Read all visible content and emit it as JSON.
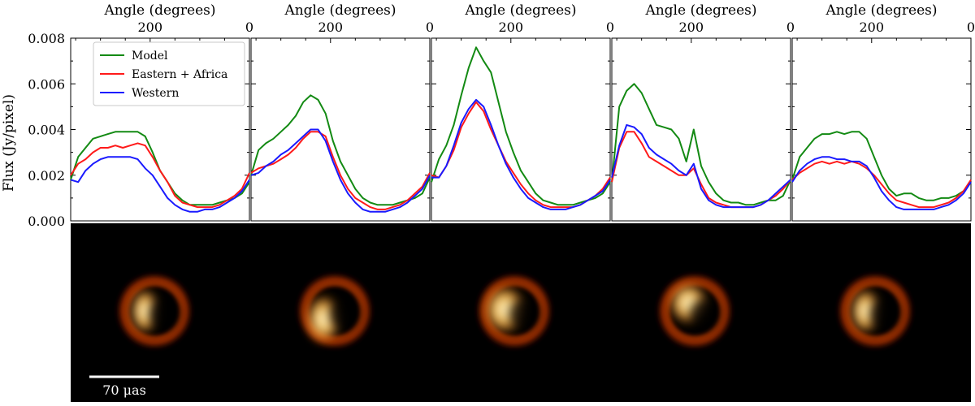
{
  "figure": {
    "ylabel": "Flux (Jy/pixel)",
    "top_xlabel": "Angle (degrees)",
    "scalebar_label": "70 μas"
  },
  "legend": {
    "entries": [
      {
        "label": "Model",
        "color": "#138a13"
      },
      {
        "label": "Eastern + Africa",
        "color": "#ff1a1a"
      },
      {
        "label": "Western",
        "color": "#1a1aff"
      }
    ]
  },
  "colors": {
    "model": "#138a13",
    "eastern_africa": "#ff1a1a",
    "western": "#1a1aff",
    "image_background": "#000000"
  },
  "chart_data": [
    {
      "type": "line",
      "xlabel": "Angle (degrees)",
      "ylabel": "Flux (Jy/pixel)",
      "xlim": [
        360,
        0
      ],
      "ylim": [
        0,
        0.008
      ],
      "x_ticks": [
        "200",
        "0"
      ],
      "y_ticks": [
        "0.000",
        "0.002",
        "0.004",
        "0.006",
        "0.008"
      ],
      "series": [
        {
          "name": "Model",
          "x": [
            360,
            345,
            330,
            315,
            300,
            285,
            270,
            255,
            240,
            225,
            210,
            195,
            180,
            165,
            150,
            135,
            120,
            105,
            90,
            75,
            60,
            45,
            30,
            15,
            0
          ],
          "y": [
            0.0018,
            0.0028,
            0.0032,
            0.0036,
            0.0037,
            0.0038,
            0.0039,
            0.0039,
            0.0039,
            0.0039,
            0.0037,
            0.003,
            0.0022,
            0.0017,
            0.0012,
            0.0009,
            0.0007,
            0.0007,
            0.0007,
            0.0007,
            0.0008,
            0.0009,
            0.001,
            0.0012,
            0.0017
          ]
        },
        {
          "name": "Eastern + Africa",
          "x": [
            360,
            345,
            330,
            315,
            300,
            285,
            270,
            255,
            240,
            225,
            210,
            195,
            180,
            165,
            150,
            135,
            120,
            105,
            90,
            75,
            60,
            45,
            30,
            15,
            0
          ],
          "y": [
            0.002,
            0.0025,
            0.0027,
            0.003,
            0.0032,
            0.0032,
            0.0033,
            0.0032,
            0.0033,
            0.0034,
            0.0033,
            0.0028,
            0.0022,
            0.0017,
            0.0011,
            0.0008,
            0.0007,
            0.0006,
            0.0006,
            0.0006,
            0.0007,
            0.0009,
            0.0011,
            0.0014,
            0.0021
          ]
        },
        {
          "name": "Western",
          "x": [
            360,
            345,
            330,
            315,
            300,
            285,
            270,
            255,
            240,
            225,
            210,
            195,
            180,
            165,
            150,
            135,
            120,
            105,
            90,
            75,
            60,
            45,
            30,
            15,
            0
          ],
          "y": [
            0.0018,
            0.0017,
            0.0022,
            0.0025,
            0.0027,
            0.0028,
            0.0028,
            0.0028,
            0.0028,
            0.0027,
            0.0023,
            0.002,
            0.0015,
            0.001,
            0.0007,
            0.0005,
            0.0004,
            0.0004,
            0.0005,
            0.0005,
            0.0006,
            0.0008,
            0.001,
            0.0013,
            0.0018
          ]
        }
      ]
    },
    {
      "type": "line",
      "xlabel": "Angle (degrees)",
      "xlim": [
        360,
        0
      ],
      "ylim": [
        0,
        0.008
      ],
      "x_ticks": [
        "200",
        "0"
      ],
      "series": [
        {
          "name": "Model",
          "x": [
            360,
            345,
            330,
            315,
            300,
            285,
            270,
            255,
            240,
            225,
            210,
            195,
            180,
            165,
            150,
            135,
            120,
            105,
            90,
            75,
            60,
            45,
            30,
            15,
            0
          ],
          "y": [
            0.002,
            0.0031,
            0.0034,
            0.0036,
            0.0039,
            0.0042,
            0.0046,
            0.0052,
            0.0055,
            0.0053,
            0.0047,
            0.0035,
            0.0026,
            0.002,
            0.0014,
            0.001,
            0.0008,
            0.0007,
            0.0007,
            0.0007,
            0.0008,
            0.0009,
            0.001,
            0.0012,
            0.0019
          ]
        },
        {
          "name": "Eastern + Africa",
          "x": [
            360,
            345,
            330,
            315,
            300,
            285,
            270,
            255,
            240,
            225,
            210,
            195,
            180,
            165,
            150,
            135,
            120,
            105,
            90,
            75,
            60,
            45,
            30,
            15,
            0
          ],
          "y": [
            0.0021,
            0.0023,
            0.0024,
            0.0025,
            0.0027,
            0.0029,
            0.0032,
            0.0036,
            0.0039,
            0.0039,
            0.0037,
            0.0028,
            0.002,
            0.0014,
            0.001,
            0.0008,
            0.0006,
            0.0005,
            0.0005,
            0.0006,
            0.0007,
            0.0009,
            0.0012,
            0.0015,
            0.0021
          ]
        },
        {
          "name": "Western",
          "x": [
            360,
            345,
            330,
            315,
            300,
            285,
            270,
            255,
            240,
            225,
            210,
            195,
            180,
            165,
            150,
            135,
            120,
            105,
            90,
            75,
            60,
            45,
            30,
            15,
            0
          ],
          "y": [
            0.002,
            0.0021,
            0.0024,
            0.0026,
            0.0029,
            0.0031,
            0.0034,
            0.0037,
            0.004,
            0.004,
            0.0035,
            0.0026,
            0.0018,
            0.0012,
            0.0008,
            0.0005,
            0.0004,
            0.0004,
            0.0004,
            0.0005,
            0.0006,
            0.0008,
            0.0011,
            0.0014,
            0.002
          ]
        }
      ]
    },
    {
      "type": "line",
      "xlabel": "Angle (degrees)",
      "xlim": [
        360,
        0
      ],
      "ylim": [
        0,
        0.008
      ],
      "x_ticks": [
        "200",
        "0"
      ],
      "series": [
        {
          "name": "Model",
          "x": [
            360,
            345,
            330,
            315,
            300,
            285,
            270,
            255,
            240,
            225,
            210,
            195,
            180,
            165,
            150,
            135,
            120,
            105,
            90,
            75,
            60,
            45,
            30,
            15,
            0
          ],
          "y": [
            0.0017,
            0.0027,
            0.0033,
            0.0042,
            0.0055,
            0.0067,
            0.0076,
            0.007,
            0.0065,
            0.0052,
            0.0039,
            0.003,
            0.0022,
            0.0017,
            0.0012,
            0.0009,
            0.0008,
            0.0007,
            0.0007,
            0.0007,
            0.0008,
            0.0009,
            0.001,
            0.0012,
            0.0017
          ]
        },
        {
          "name": "Eastern + Africa",
          "x": [
            360,
            345,
            330,
            315,
            300,
            285,
            270,
            255,
            240,
            225,
            210,
            195,
            180,
            165,
            150,
            135,
            120,
            105,
            90,
            75,
            60,
            45,
            30,
            15,
            0
          ],
          "y": [
            0.002,
            0.0019,
            0.0024,
            0.0031,
            0.0041,
            0.0047,
            0.0052,
            0.0048,
            0.004,
            0.0033,
            0.0026,
            0.0021,
            0.0016,
            0.0012,
            0.0009,
            0.0007,
            0.0006,
            0.0006,
            0.0006,
            0.0006,
            0.0007,
            0.0009,
            0.0011,
            0.0014,
            0.0019
          ]
        },
        {
          "name": "Western",
          "x": [
            360,
            345,
            330,
            315,
            300,
            285,
            270,
            255,
            240,
            225,
            210,
            195,
            180,
            165,
            150,
            135,
            120,
            105,
            90,
            75,
            60,
            45,
            30,
            15,
            0
          ],
          "y": [
            0.0019,
            0.0019,
            0.0024,
            0.0033,
            0.0043,
            0.0049,
            0.0053,
            0.005,
            0.0042,
            0.0033,
            0.0025,
            0.0019,
            0.0014,
            0.001,
            0.0008,
            0.0006,
            0.0005,
            0.0005,
            0.0005,
            0.0006,
            0.0007,
            0.0009,
            0.0011,
            0.0013,
            0.0018
          ]
        }
      ]
    },
    {
      "type": "line",
      "xlabel": "Angle (degrees)",
      "xlim": [
        360,
        0
      ],
      "ylim": [
        0,
        0.008
      ],
      "x_ticks": [
        "200",
        "0"
      ],
      "series": [
        {
          "name": "Model",
          "x": [
            360,
            345,
            330,
            315,
            300,
            285,
            270,
            255,
            240,
            225,
            210,
            195,
            180,
            165,
            150,
            135,
            120,
            105,
            90,
            75,
            60,
            45,
            30,
            15,
            0
          ],
          "y": [
            0.0017,
            0.005,
            0.0057,
            0.006,
            0.0056,
            0.0049,
            0.0042,
            0.0041,
            0.004,
            0.0036,
            0.0026,
            0.004,
            0.0024,
            0.0017,
            0.0012,
            0.0009,
            0.0008,
            0.0008,
            0.0007,
            0.0007,
            0.0008,
            0.0009,
            0.0009,
            0.0011,
            0.0018
          ]
        },
        {
          "name": "Eastern + Africa",
          "x": [
            360,
            345,
            330,
            315,
            300,
            285,
            270,
            255,
            240,
            225,
            210,
            195,
            180,
            165,
            150,
            135,
            120,
            105,
            90,
            75,
            60,
            45,
            30,
            15,
            0
          ],
          "y": [
            0.0017,
            0.0032,
            0.0039,
            0.0039,
            0.0034,
            0.0028,
            0.0026,
            0.0024,
            0.0022,
            0.002,
            0.002,
            0.0023,
            0.0016,
            0.001,
            0.0008,
            0.0007,
            0.0006,
            0.0006,
            0.0006,
            0.0006,
            0.0007,
            0.0009,
            0.0011,
            0.0014,
            0.0018
          ]
        },
        {
          "name": "Western",
          "x": [
            360,
            345,
            330,
            315,
            300,
            285,
            270,
            255,
            240,
            225,
            210,
            195,
            180,
            165,
            150,
            135,
            120,
            105,
            90,
            75,
            60,
            45,
            30,
            15,
            0
          ],
          "y": [
            0.0019,
            0.0033,
            0.0042,
            0.0041,
            0.0038,
            0.0032,
            0.0029,
            0.0027,
            0.0025,
            0.0022,
            0.002,
            0.0025,
            0.0014,
            0.0009,
            0.0007,
            0.0006,
            0.0006,
            0.0006,
            0.0006,
            0.0006,
            0.0007,
            0.0009,
            0.0012,
            0.0015,
            0.0018
          ]
        }
      ]
    },
    {
      "type": "line",
      "xlabel": "Angle (degrees)",
      "xlim": [
        360,
        0
      ],
      "ylim": [
        0,
        0.008
      ],
      "x_ticks": [
        "200",
        "0"
      ],
      "series": [
        {
          "name": "Model",
          "x": [
            360,
            345,
            330,
            315,
            300,
            285,
            270,
            255,
            240,
            225,
            210,
            195,
            180,
            165,
            150,
            135,
            120,
            105,
            90,
            75,
            60,
            45,
            30,
            15,
            0
          ],
          "y": [
            0.0018,
            0.0028,
            0.0032,
            0.0036,
            0.0038,
            0.0038,
            0.0039,
            0.0038,
            0.0039,
            0.0039,
            0.0036,
            0.0028,
            0.002,
            0.0014,
            0.0011,
            0.0012,
            0.0012,
            0.001,
            0.0009,
            0.0009,
            0.001,
            0.001,
            0.0011,
            0.0013,
            0.0017
          ]
        },
        {
          "name": "Eastern + Africa",
          "x": [
            360,
            345,
            330,
            315,
            300,
            285,
            270,
            255,
            240,
            225,
            210,
            195,
            180,
            165,
            150,
            135,
            120,
            105,
            90,
            75,
            60,
            45,
            30,
            15,
            0
          ],
          "y": [
            0.0018,
            0.0021,
            0.0023,
            0.0025,
            0.0026,
            0.0025,
            0.0026,
            0.0025,
            0.0026,
            0.0025,
            0.0023,
            0.002,
            0.0016,
            0.0012,
            0.0009,
            0.0008,
            0.0007,
            0.0006,
            0.0006,
            0.0006,
            0.0007,
            0.0008,
            0.001,
            0.0013,
            0.0018
          ]
        },
        {
          "name": "Western",
          "x": [
            360,
            345,
            330,
            315,
            300,
            285,
            270,
            255,
            240,
            225,
            210,
            195,
            180,
            165,
            150,
            135,
            120,
            105,
            90,
            75,
            60,
            45,
            30,
            15,
            0
          ],
          "y": [
            0.0017,
            0.0022,
            0.0025,
            0.0027,
            0.0028,
            0.0028,
            0.0027,
            0.0027,
            0.0026,
            0.0026,
            0.0024,
            0.0019,
            0.0013,
            0.0009,
            0.0006,
            0.0005,
            0.0005,
            0.0005,
            0.0005,
            0.0005,
            0.0006,
            0.0007,
            0.0009,
            0.0012,
            0.0017
          ]
        }
      ]
    }
  ]
}
